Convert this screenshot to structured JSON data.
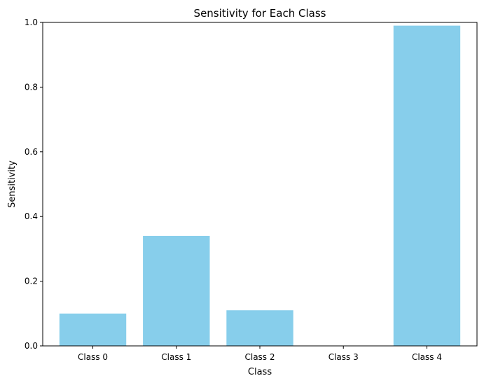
{
  "chart_data": {
    "type": "bar",
    "title": "Sensitivity for Each Class",
    "xlabel": "Class",
    "ylabel": "Sensitivity",
    "categories": [
      "Class 0",
      "Class 1",
      "Class 2",
      "Class 3",
      "Class 4"
    ],
    "values": [
      0.1,
      0.34,
      0.11,
      0.0,
      0.99
    ],
    "ylim": [
      0,
      1.0
    ],
    "yticks": [
      "0.0",
      "0.2",
      "0.4",
      "0.6",
      "0.8",
      "1.0"
    ],
    "bar_color": "#87ceeb",
    "grid": false,
    "legend": "none"
  }
}
